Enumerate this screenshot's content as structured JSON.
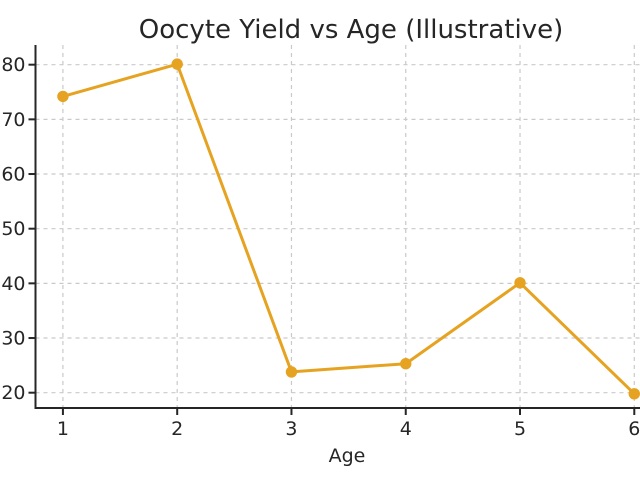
{
  "figure": {
    "background": "#ffffff"
  },
  "chart_data": {
    "type": "line",
    "title": "Oocyte Yield vs Age (Illustrative)",
    "xlabel": "Age",
    "ylabel": "",
    "x": [
      1,
      2,
      3,
      4,
      5,
      6
    ],
    "series": [
      {
        "name": "Oocyte Yield",
        "values": [
          74.2,
          80.1,
          23.8,
          25.3,
          40.1,
          19.8
        ],
        "color": "#E6A321",
        "marker": "circle",
        "line_width": 3,
        "marker_radius": 5.7
      }
    ],
    "x_ticks": [
      "1",
      "2",
      "3",
      "4",
      "5",
      "6"
    ],
    "x_tick_values": [
      1,
      2,
      3,
      4,
      5,
      6
    ],
    "y_ticks": [
      "20",
      "30",
      "40",
      "50",
      "60",
      "70",
      "80"
    ],
    "y_tick_values": [
      20,
      30,
      40,
      50,
      60,
      70,
      80
    ],
    "xlim": [
      0.76,
      6.05
    ],
    "ylim": [
      17.2,
      83.6
    ],
    "grid": true,
    "grid_style": "dashed",
    "legend": "none",
    "colors": {
      "grid": "#c9c9c9",
      "axis": "#262626",
      "text": "#262626",
      "background": "#ffffff"
    }
  }
}
